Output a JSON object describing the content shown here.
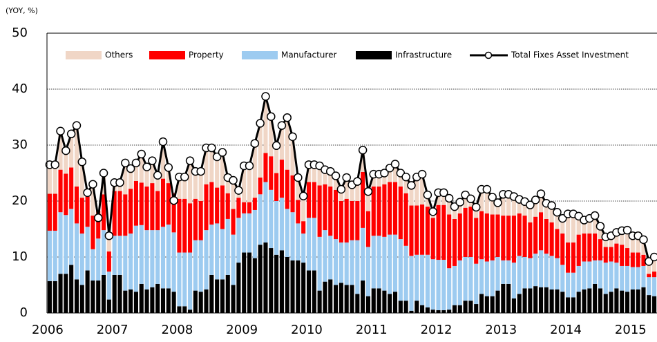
{
  "chart_data": {
    "type": "bar",
    "stacked": true,
    "y_label": "(YOY, %)",
    "categories": [
      "2006",
      null,
      null,
      null,
      null,
      null,
      null,
      null,
      null,
      null,
      null,
      null,
      "2007",
      null,
      null,
      null,
      null,
      null,
      null,
      null,
      null,
      null,
      null,
      null,
      "2008",
      null,
      null,
      null,
      null,
      null,
      null,
      null,
      null,
      null,
      null,
      null,
      "2009",
      null,
      null,
      null,
      null,
      null,
      null,
      null,
      null,
      null,
      null,
      null,
      "2010",
      null,
      null,
      null,
      null,
      null,
      null,
      null,
      null,
      null,
      null,
      null,
      "2011",
      null,
      null,
      null,
      null,
      null,
      null,
      null,
      null,
      null,
      null,
      null,
      "2012",
      null,
      null,
      null,
      null,
      null,
      null,
      null,
      null,
      null,
      null,
      null,
      "2013",
      null,
      null,
      null,
      null,
      null,
      null,
      null,
      null,
      null,
      null,
      null,
      "2014",
      null,
      null,
      null,
      null,
      null,
      null,
      null,
      null,
      null,
      null,
      null,
      "2015",
      null,
      null,
      null,
      null
    ],
    "series": [
      {
        "name": "Others",
        "color": "#f0d6c6",
        "values": [
          5.2,
          5.2,
          6.9,
          4.1,
          6.0,
          10.9,
          6.4,
          0.1,
          5.6,
          0,
          3.8,
          2.8,
          1.5,
          1.5,
          5.6,
          3.6,
          3.2,
          5.1,
          3.5,
          4.0,
          2.8,
          6.6,
          2.8,
          0,
          3.9,
          3.9,
          7.6,
          4.9,
          5.3,
          6.5,
          6.1,
          5.5,
          5.9,
          2.8,
          5.1,
          1.3,
          6.5,
          6.5,
          9.7,
          9.7,
          10.1,
          7.1,
          4.9,
          6.1,
          9.3,
          6.9,
          4.0,
          4.5,
          3.1,
          3.1,
          3.5,
          2.6,
          2.7,
          2.5,
          2.1,
          3.8,
          2.9,
          3.5,
          3.9,
          3.5,
          2.2,
          2.2,
          2.0,
          2.5,
          3.2,
          2.4,
          2.9,
          3.6,
          5.1,
          5.4,
          2.1,
          1.1,
          2.2,
          2.2,
          2.9,
          2.2,
          2.0,
          2.3,
          1.4,
          1.9,
          3.9,
          4.3,
          3.1,
          2.1,
          3.8,
          3.8,
          3.4,
          2.5,
          2.5,
          3.1,
          3.0,
          3.3,
          2.8,
          3.0,
          3.0,
          2.7,
          5.1,
          5.1,
          3.3,
          2.4,
          2.7,
          3.2,
          2.3,
          1.8,
          2.0,
          2.0,
          2.5,
          3.2,
          3.0,
          3.0,
          2.7,
          2.2,
          2.6
        ]
      },
      {
        "name": "Property",
        "color": "#ff0000",
        "values": [
          6.6,
          6.6,
          7.6,
          7.4,
          7.4,
          6.6,
          6.4,
          6.0,
          6.0,
          5.0,
          6.4,
          3.6,
          8.0,
          8.0,
          7.4,
          8.0,
          8.0,
          7.6,
          7.8,
          8.4,
          7.0,
          8.6,
          7.4,
          7.0,
          9.6,
          9.6,
          8.8,
          7.4,
          7.0,
          8.2,
          7.6,
          6.4,
          7.8,
          4.6,
          4.6,
          3.6,
          2.0,
          2.0,
          2.2,
          3.0,
          5.2,
          6.0,
          5.0,
          6.8,
          7.0,
          6.6,
          4.2,
          2.2,
          6.4,
          6.4,
          9.2,
          8.2,
          8.8,
          8.8,
          7.4,
          7.8,
          7.0,
          7.0,
          10.0,
          6.4,
          8.8,
          8.8,
          9.4,
          9.4,
          9.4,
          9.4,
          9.4,
          9.0,
          8.8,
          9.0,
          8.6,
          7.4,
          9.8,
          9.8,
          9.6,
          8.4,
          8.4,
          8.8,
          9.0,
          8.2,
          8.6,
          8.6,
          8.2,
          7.6,
          8.0,
          8.0,
          8.4,
          7.6,
          7.4,
          6.4,
          6.6,
          6.8,
          6.2,
          6.0,
          5.2,
          5.6,
          5.4,
          5.4,
          5.6,
          5.0,
          5.0,
          4.8,
          3.8,
          2.8,
          2.6,
          3.4,
          3.8,
          3.2,
          2.6,
          2.6,
          2.0,
          0.6,
          1.0
        ]
      },
      {
        "name": "Manufacturer",
        "color": "#9dcbf0",
        "values": [
          9.0,
          9.0,
          11.0,
          10.5,
          10.0,
          10.0,
          9.2,
          7.8,
          5.6,
          7.5,
          8.0,
          5.0,
          7.0,
          7.0,
          9.8,
          10.0,
          11.8,
          10.5,
          10.6,
          10.2,
          9.6,
          11.0,
          11.4,
          10.6,
          9.6,
          9.6,
          10.2,
          9.0,
          9.2,
          10.6,
          9.0,
          10.0,
          9.0,
          10.0,
          9.0,
          8.0,
          7.0,
          7.0,
          8.6,
          9.0,
          10.8,
          10.4,
          9.6,
          9.4,
          8.6,
          8.6,
          6.6,
          5.2,
          9.4,
          9.4,
          9.6,
          9.2,
          7.8,
          8.2,
          7.2,
          7.6,
          8.0,
          9.6,
          9.4,
          8.8,
          9.4,
          9.4,
          9.6,
          10.6,
          10.2,
          11.0,
          9.8,
          9.8,
          8.2,
          9.0,
          9.4,
          9.0,
          9.0,
          9.0,
          7.4,
          7.0,
          8.0,
          7.8,
          7.8,
          7.2,
          6.2,
          6.2,
          6.4,
          6.0,
          4.2,
          4.2,
          6.4,
          6.8,
          5.6,
          5.4,
          5.8,
          6.6,
          6.0,
          6.0,
          5.6,
          4.8,
          4.4,
          4.4,
          4.6,
          5.0,
          4.8,
          4.2,
          5.0,
          5.6,
          5.4,
          4.6,
          4.4,
          4.6,
          4.0,
          4.0,
          3.8,
          3.2,
          3.4
        ]
      },
      {
        "name": "Infrastructure",
        "color": "#000000",
        "values": [
          5.7,
          5.7,
          7.0,
          7.0,
          8.6,
          6.0,
          5.0,
          7.6,
          5.8,
          5.8,
          6.8,
          2.4,
          6.8,
          6.8,
          4.0,
          4.2,
          3.8,
          5.2,
          4.2,
          4.6,
          5.2,
          4.4,
          4.4,
          3.8,
          1.2,
          1.2,
          0.6,
          4.0,
          3.8,
          4.2,
          6.8,
          6.0,
          6.0,
          6.8,
          5.0,
          9.0,
          10.8,
          10.8,
          9.8,
          12.2,
          12.6,
          11.6,
          10.4,
          11.2,
          10.0,
          9.4,
          9.4,
          9.0,
          7.6,
          7.6,
          4.0,
          5.6,
          6.0,
          5.0,
          5.4,
          5.0,
          5.0,
          3.4,
          5.8,
          3.0,
          4.4,
          4.4,
          4.0,
          3.4,
          3.8,
          2.2,
          2.2,
          0.4,
          2.2,
          1.4,
          1.0,
          0.6,
          0.5,
          0.5,
          0.6,
          1.4,
          1.4,
          2.2,
          2.2,
          1.6,
          3.4,
          3.0,
          3.0,
          4.0,
          5.2,
          5.2,
          2.6,
          3.4,
          4.4,
          4.4,
          4.8,
          4.6,
          4.6,
          4.2,
          4.2,
          3.8,
          2.8,
          2.8,
          3.8,
          4.2,
          4.4,
          5.2,
          4.4,
          3.4,
          3.8,
          4.4,
          4.0,
          3.8,
          4.2,
          4.2,
          4.6,
          3.2,
          3.0
        ]
      },
      {
        "name": "Total Fixes Asset Investment",
        "type": "line",
        "color": "#000000",
        "values": [
          26.5,
          26.5,
          32.5,
          29.0,
          32.0,
          33.5,
          27.0,
          21.5,
          23.0,
          17.0,
          25.0,
          13.8,
          23.3,
          23.3,
          26.8,
          25.8,
          26.8,
          28.4,
          26.1,
          27.2,
          24.6,
          30.6,
          26.0,
          20.1,
          24.3,
          24.3,
          27.2,
          25.3,
          25.3,
          29.5,
          29.5,
          27.9,
          28.7,
          24.2,
          23.7,
          21.9,
          26.3,
          26.3,
          30.3,
          33.9,
          38.7,
          35.1,
          29.9,
          33.5,
          34.9,
          31.5,
          24.2,
          20.9,
          26.5,
          26.5,
          26.3,
          25.6,
          25.3,
          24.5,
          22.1,
          24.2,
          22.9,
          23.5,
          29.1,
          21.7,
          24.8,
          24.8,
          25.0,
          25.9,
          26.6,
          25.0,
          24.3,
          22.8,
          24.3,
          24.8,
          21.1,
          18.1,
          21.5,
          21.5,
          20.5,
          19.0,
          19.8,
          21.1,
          20.4,
          18.9,
          22.1,
          22.1,
          20.7,
          19.7,
          21.2,
          21.2,
          20.8,
          20.3,
          19.9,
          19.3,
          20.2,
          21.3,
          19.6,
          19.2,
          18.0,
          16.9,
          17.7,
          17.7,
          17.3,
          16.6,
          16.9,
          17.4,
          15.5,
          13.6,
          13.8,
          14.4,
          14.7,
          14.8,
          13.8,
          13.8,
          13.1,
          9.2,
          10.0
        ]
      }
    ],
    "ylim": [
      0,
      50
    ],
    "yticks": [
      0,
      10,
      20,
      30,
      40,
      50
    ],
    "grid": true,
    "legend": "top"
  }
}
